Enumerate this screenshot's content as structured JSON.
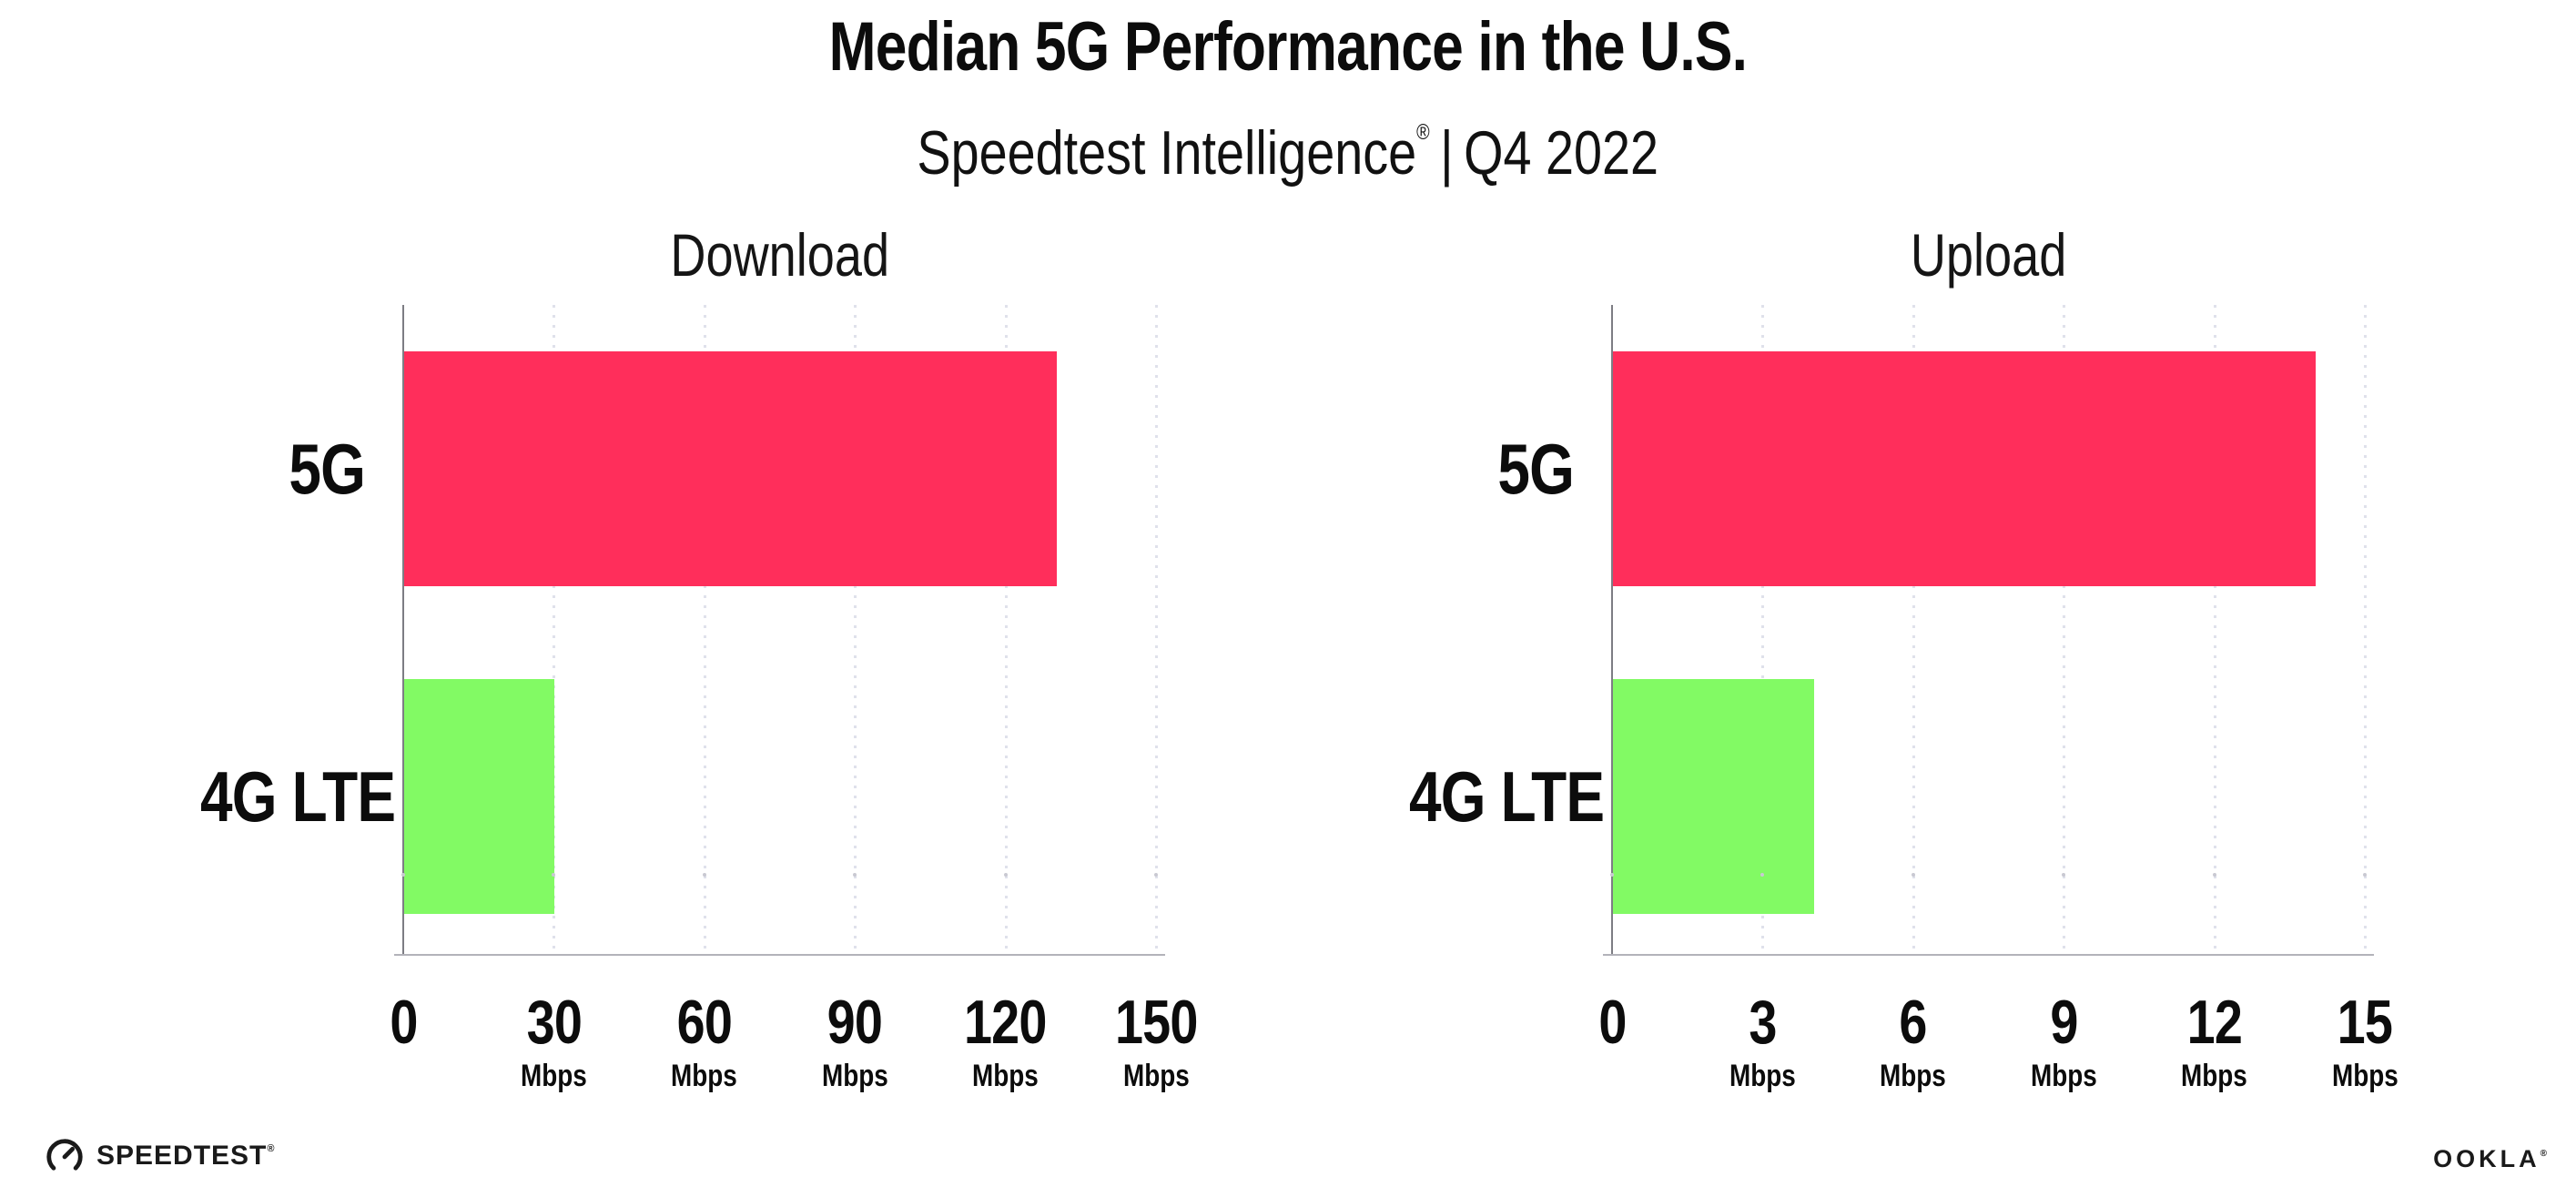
{
  "header": {
    "title": "Median 5G Performance in the U.S.",
    "subtitle_brand": "Speedtest Intelligence",
    "subtitle_reg": "®",
    "subtitle_separator": "|",
    "subtitle_period": "Q4 2022"
  },
  "footer": {
    "speedtest_label": "SPEEDTEST",
    "speedtest_reg": "®",
    "ookla_label": "OOKLA",
    "ookla_reg": "®"
  },
  "colors": {
    "bar_5g": "#ff2e5b",
    "bar_4g_lte": "#82fa64",
    "gridline": "#dfe1eb",
    "y_axis": "#7d7d84",
    "x_axis": "#b3b3ba",
    "text": "#0c0c0c",
    "background": "#ffffff"
  },
  "chart_data": [
    {
      "type": "bar",
      "orientation": "horizontal",
      "title": "Download",
      "categories": [
        "5G",
        "4G LTE"
      ],
      "values": [
        130,
        30
      ],
      "unit": "Mbps",
      "xlim": [
        0,
        150
      ],
      "xticks": [
        0,
        30,
        60,
        90,
        120,
        150
      ],
      "tick_unit_label": "Mbps",
      "bar_colors": [
        "#ff2e5b",
        "#82fa64"
      ],
      "grid": "dotted-vertical",
      "legend": "none"
    },
    {
      "type": "bar",
      "orientation": "horizontal",
      "title": "Upload",
      "categories": [
        "5G",
        "4G LTE"
      ],
      "values": [
        14,
        4
      ],
      "unit": "Mbps",
      "xlim": [
        0,
        15
      ],
      "xticks": [
        0,
        3,
        6,
        9,
        12,
        15
      ],
      "tick_unit_label": "Mbps",
      "bar_colors": [
        "#ff2e5b",
        "#82fa64"
      ],
      "grid": "dotted-vertical",
      "legend": "none"
    }
  ]
}
